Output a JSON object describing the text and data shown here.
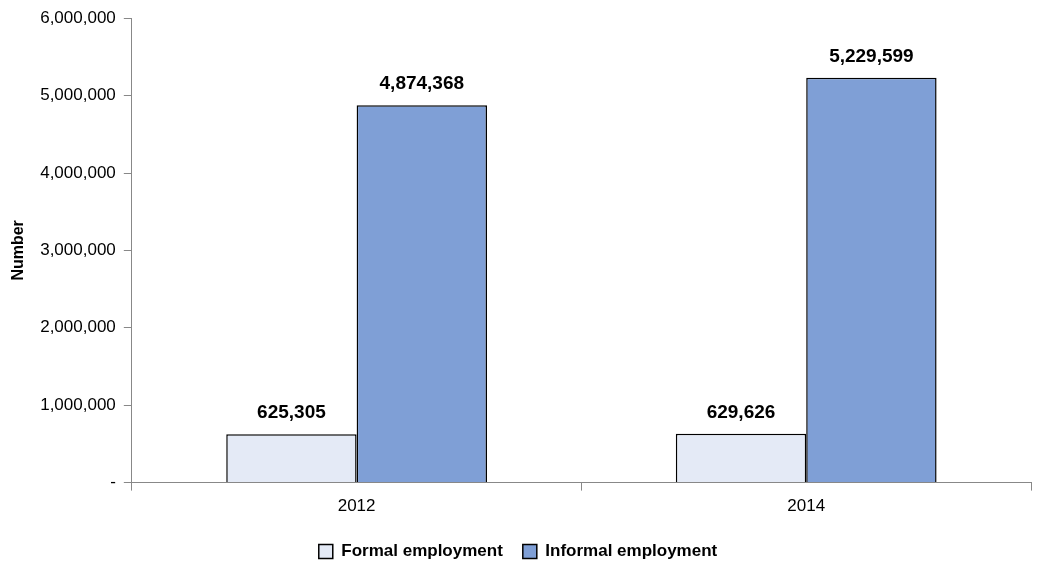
{
  "chart_data": {
    "type": "bar",
    "ylabel": "Number",
    "categories": [
      "2012",
      "2014"
    ],
    "series": [
      {
        "name": "Formal employment",
        "color": "#e4eaf6",
        "values": [
          625305,
          629626
        ],
        "value_labels": [
          "625,305",
          "629,626"
        ]
      },
      {
        "name": "Informal employment",
        "color": "#7f9fd6",
        "values": [
          4874368,
          5229599
        ],
        "value_labels": [
          "4,874,368",
          "5,229,599"
        ]
      }
    ],
    "ylim": [
      0,
      6000000
    ],
    "yticks": [
      {
        "value": 0,
        "label": "-"
      },
      {
        "value": 1000000,
        "label": "1,000,000"
      },
      {
        "value": 2000000,
        "label": "2,000,000"
      },
      {
        "value": 3000000,
        "label": "3,000,000"
      },
      {
        "value": 4000000,
        "label": "4,000,000"
      },
      {
        "value": 5000000,
        "label": "5,000,000"
      },
      {
        "value": 6000000,
        "label": "6,000,000"
      }
    ],
    "grid": false,
    "legend": "bottom"
  }
}
